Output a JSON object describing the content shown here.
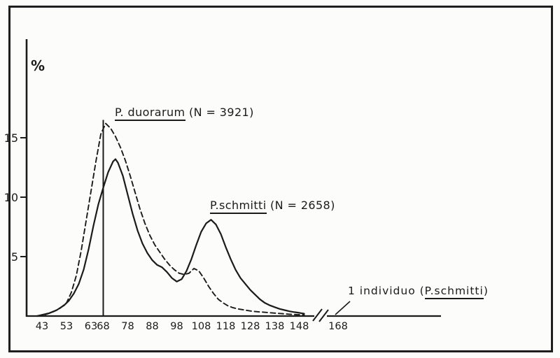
{
  "labels": {
    "y_axis": "%",
    "duorarum_name": "P. duorarum",
    "duorarum_n": " (N = 3921)",
    "schmitti_name": "P.schmitti",
    "schmitti_n": " (N = 2658)",
    "individuo_prefix": "1 individuo (",
    "individuo_species": "P.schmitti",
    "individuo_suffix": ")"
  },
  "chart_data": {
    "type": "line",
    "title": "",
    "xlabel": "",
    "ylabel": "%",
    "ylim": [
      0,
      17
    ],
    "y_ticks": [
      5,
      10,
      15
    ],
    "x_ticks": [
      43,
      53,
      63,
      68,
      78,
      88,
      98,
      108,
      118,
      128,
      138,
      148
    ],
    "x_tick_after_break": 168,
    "axis_break": {
      "after_x": 150
    },
    "vertical_marker": {
      "x": 68,
      "top": 16.5
    },
    "grid": false,
    "legend_position": "inline-annotations",
    "ink_color": "#1b1b1b",
    "paper_color": "#fcfcfa",
    "series": [
      {
        "name": "P. duorarum",
        "n": 3921,
        "line_style": "dashed",
        "points": [
          [
            41,
            0
          ],
          [
            44,
            0.1
          ],
          [
            47,
            0.3
          ],
          [
            50,
            0.6
          ],
          [
            53,
            1.1
          ],
          [
            55,
            2.0
          ],
          [
            57,
            3.4
          ],
          [
            59,
            5.5
          ],
          [
            61,
            8.0
          ],
          [
            63,
            10.5
          ],
          [
            65,
            13.0
          ],
          [
            67,
            15.3
          ],
          [
            69,
            16.2
          ],
          [
            71,
            15.8
          ],
          [
            73,
            15.1
          ],
          [
            75,
            14.2
          ],
          [
            77,
            13.1
          ],
          [
            79,
            11.8
          ],
          [
            81,
            10.4
          ],
          [
            83,
            9.0
          ],
          [
            85,
            7.8
          ],
          [
            87,
            6.8
          ],
          [
            89,
            6.0
          ],
          [
            91,
            5.4
          ],
          [
            93,
            4.8
          ],
          [
            95,
            4.3
          ],
          [
            97,
            3.9
          ],
          [
            99,
            3.6
          ],
          [
            101,
            3.5
          ],
          [
            103,
            3.6
          ],
          [
            105,
            4.0
          ],
          [
            107,
            3.8
          ],
          [
            109,
            3.2
          ],
          [
            111,
            2.5
          ],
          [
            113,
            1.9
          ],
          [
            115,
            1.4
          ],
          [
            117,
            1.1
          ],
          [
            119,
            0.85
          ],
          [
            121,
            0.7
          ],
          [
            123,
            0.6
          ],
          [
            126,
            0.5
          ],
          [
            129,
            0.4
          ],
          [
            132,
            0.35
          ],
          [
            135,
            0.3
          ],
          [
            138,
            0.25
          ],
          [
            141,
            0.2
          ],
          [
            144,
            0.15
          ],
          [
            147,
            0.12
          ],
          [
            150,
            0.1
          ]
        ]
      },
      {
        "name": "P. schmitti",
        "n": 2658,
        "line_style": "solid",
        "points": [
          [
            41,
            0
          ],
          [
            43,
            0.1
          ],
          [
            46,
            0.25
          ],
          [
            49,
            0.5
          ],
          [
            52,
            0.9
          ],
          [
            54,
            1.3
          ],
          [
            56,
            1.9
          ],
          [
            58,
            2.7
          ],
          [
            60,
            3.9
          ],
          [
            62,
            5.6
          ],
          [
            64,
            7.6
          ],
          [
            66,
            9.4
          ],
          [
            68,
            10.8
          ],
          [
            70,
            12.1
          ],
          [
            72,
            13.0
          ],
          [
            73,
            13.2
          ],
          [
            74,
            12.9
          ],
          [
            76,
            11.8
          ],
          [
            78,
            10.2
          ],
          [
            80,
            8.6
          ],
          [
            82,
            7.2
          ],
          [
            84,
            6.1
          ],
          [
            86,
            5.3
          ],
          [
            88,
            4.7
          ],
          [
            90,
            4.3
          ],
          [
            92,
            4.1
          ],
          [
            94,
            3.7
          ],
          [
            96,
            3.2
          ],
          [
            98,
            2.9
          ],
          [
            100,
            3.1
          ],
          [
            102,
            3.8
          ],
          [
            104,
            4.8
          ],
          [
            106,
            6.0
          ],
          [
            108,
            7.1
          ],
          [
            110,
            7.8
          ],
          [
            112,
            8.1
          ],
          [
            114,
            7.7
          ],
          [
            116,
            6.9
          ],
          [
            118,
            5.8
          ],
          [
            120,
            4.8
          ],
          [
            122,
            3.9
          ],
          [
            124,
            3.2
          ],
          [
            126,
            2.7
          ],
          [
            128,
            2.2
          ],
          [
            130,
            1.8
          ],
          [
            132,
            1.4
          ],
          [
            134,
            1.1
          ],
          [
            136,
            0.9
          ],
          [
            138,
            0.75
          ],
          [
            140,
            0.6
          ],
          [
            142,
            0.5
          ],
          [
            144,
            0.4
          ],
          [
            146,
            0.33
          ],
          [
            148,
            0.27
          ],
          [
            150,
            0.2
          ]
        ]
      }
    ],
    "annotations": [
      {
        "text": "P. duorarum (N = 3921)"
      },
      {
        "text": "P.schmitti (N = 2658)"
      },
      {
        "text": "1 individuo (P.schmitti)",
        "points_to_x": 168
      }
    ]
  }
}
